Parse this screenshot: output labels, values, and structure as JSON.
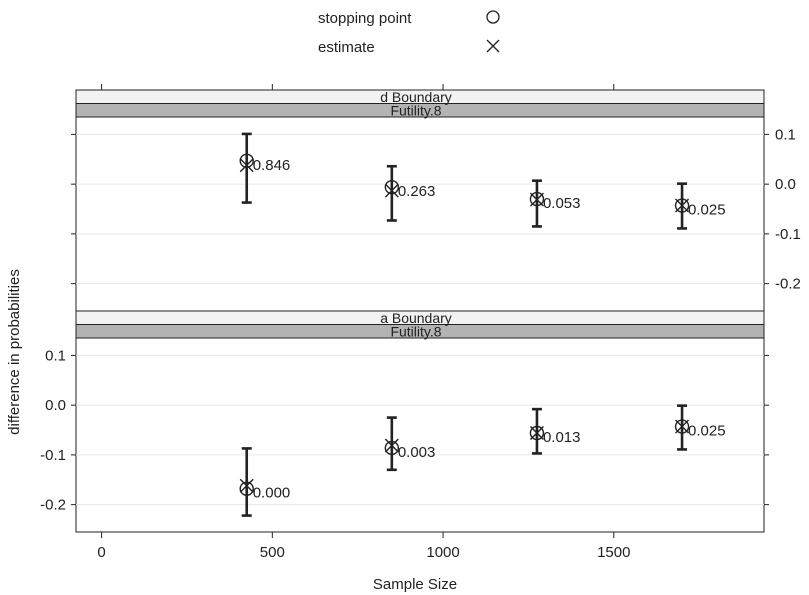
{
  "chart_data": {
    "type": "scatter",
    "xlabel": "Sample Size",
    "ylabel": "difference in probabilities",
    "xlim": [
      -75,
      1940
    ],
    "ylim": [
      -0.255,
      0.135
    ],
    "x_ticks": [
      0,
      500,
      1000,
      1500
    ],
    "x_tick_labels": [
      "0",
      "500",
      "1000",
      "1500"
    ],
    "y_ticks": [
      0.1,
      0.0,
      -0.1,
      -0.2
    ],
    "y_tick_labels": [
      "0.1",
      "0.0",
      "-0.1",
      "-0.2"
    ],
    "grid": "horizontal",
    "legend_position": "top-center",
    "legend": [
      {
        "label": "stopping point",
        "marker": "circle"
      },
      {
        "label": "estimate",
        "marker": "x"
      }
    ],
    "panels": [
      {
        "strip_labels": [
          "d Boundary",
          "Futility.8"
        ],
        "points": [
          {
            "x": 425,
            "stopping": 0.047,
            "estimate": 0.038,
            "lower": -0.037,
            "upper": 0.101,
            "label": "0.846"
          },
          {
            "x": 850,
            "stopping": -0.006,
            "estimate": -0.013,
            "lower": -0.073,
            "upper": 0.036,
            "label": "0.263"
          },
          {
            "x": 1275,
            "stopping": -0.03,
            "estimate": -0.031,
            "lower": -0.085,
            "upper": 0.007,
            "label": "0.053"
          },
          {
            "x": 1700,
            "stopping": -0.043,
            "estimate": -0.043,
            "lower": -0.089,
            "upper": 0.001,
            "label": "0.025"
          }
        ]
      },
      {
        "strip_labels": [
          "a Boundary",
          "Futility.8"
        ],
        "points": [
          {
            "x": 425,
            "stopping": -0.168,
            "estimate": -0.162,
            "lower": -0.222,
            "upper": -0.087,
            "label": "0.000"
          },
          {
            "x": 850,
            "stopping": -0.086,
            "estimate": -0.081,
            "lower": -0.13,
            "upper": -0.025,
            "label": "0.003"
          },
          {
            "x": 1275,
            "stopping": -0.056,
            "estimate": -0.056,
            "lower": -0.097,
            "upper": -0.008,
            "label": "0.013"
          },
          {
            "x": 1700,
            "stopping": -0.043,
            "estimate": -0.043,
            "lower": -0.089,
            "upper": -0.001,
            "label": "0.025"
          }
        ]
      }
    ],
    "colors": {
      "strip_top": "#f2f2f2",
      "strip_bottom": "#b3b3b3",
      "gridline": "#e6e6e6",
      "ink": "#222222"
    }
  }
}
